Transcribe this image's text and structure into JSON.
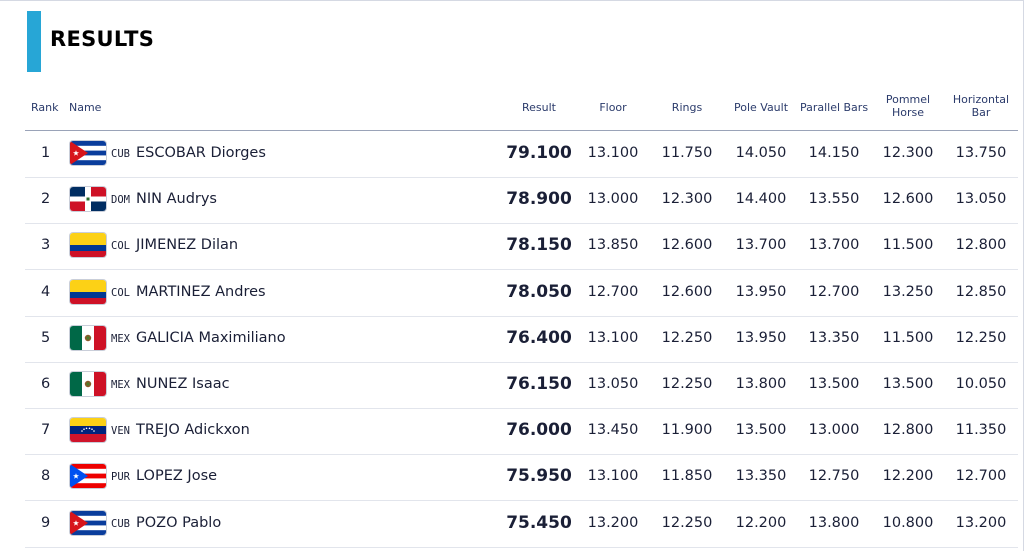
{
  "title": "RESULTS",
  "headers": {
    "rank": "Rank",
    "name": "Name",
    "result": "Result",
    "floor": "Floor",
    "rings": "Rings",
    "pole_vault": "Pole Vault",
    "parallel_bars": "Parallel Bars",
    "pommel_horse": "Pommel Horse",
    "horizontal_bar": "Horizontal Bar"
  },
  "rows": [
    {
      "rank": "1",
      "flag": "cuba-flag-icon",
      "code": "CUB",
      "name": "ESCOBAR Diorges",
      "result": "79.100",
      "floor": "13.100",
      "rings": "11.750",
      "pole_vault": "14.050",
      "parallel_bars": "14.150",
      "pommel_horse": "12.300",
      "horizontal_bar": "13.750"
    },
    {
      "rank": "2",
      "flag": "dominican-republic-flag-icon",
      "code": "DOM",
      "name": "NIN Audrys",
      "result": "78.900",
      "floor": "13.000",
      "rings": "12.300",
      "pole_vault": "14.400",
      "parallel_bars": "13.550",
      "pommel_horse": "12.600",
      "horizontal_bar": "13.050"
    },
    {
      "rank": "3",
      "flag": "colombia-flag-icon",
      "code": "COL",
      "name": "JIMENEZ Dilan",
      "result": "78.150",
      "floor": "13.850",
      "rings": "12.600",
      "pole_vault": "13.700",
      "parallel_bars": "13.700",
      "pommel_horse": "11.500",
      "horizontal_bar": "12.800"
    },
    {
      "rank": "4",
      "flag": "colombia-flag-icon",
      "code": "COL",
      "name": "MARTINEZ Andres",
      "result": "78.050",
      "floor": "12.700",
      "rings": "12.600",
      "pole_vault": "13.950",
      "parallel_bars": "12.700",
      "pommel_horse": "13.250",
      "horizontal_bar": "12.850"
    },
    {
      "rank": "5",
      "flag": "mexico-flag-icon",
      "code": "MEX",
      "name": "GALICIA Maximiliano",
      "result": "76.400",
      "floor": "13.100",
      "rings": "12.250",
      "pole_vault": "13.950",
      "parallel_bars": "13.350",
      "pommel_horse": "11.500",
      "horizontal_bar": "12.250"
    },
    {
      "rank": "6",
      "flag": "mexico-flag-icon",
      "code": "MEX",
      "name": "NUNEZ Isaac",
      "result": "76.150",
      "floor": "13.050",
      "rings": "12.250",
      "pole_vault": "13.800",
      "parallel_bars": "13.500",
      "pommel_horse": "13.500",
      "horizontal_bar": "10.050"
    },
    {
      "rank": "7",
      "flag": "venezuela-flag-icon",
      "code": "VEN",
      "name": "TREJO Adickxon",
      "result": "76.000",
      "floor": "13.450",
      "rings": "11.900",
      "pole_vault": "13.500",
      "parallel_bars": "13.000",
      "pommel_horse": "12.800",
      "horizontal_bar": "11.350"
    },
    {
      "rank": "8",
      "flag": "puerto-rico-flag-icon",
      "code": "PUR",
      "name": "LOPEZ Jose",
      "result": "75.950",
      "floor": "13.100",
      "rings": "11.850",
      "pole_vault": "13.350",
      "parallel_bars": "12.750",
      "pommel_horse": "12.200",
      "horizontal_bar": "12.700"
    },
    {
      "rank": "9",
      "flag": "cuba-flag-icon",
      "code": "CUB",
      "name": "POZO Pablo",
      "result": "75.450",
      "floor": "13.200",
      "rings": "12.250",
      "pole_vault": "12.200",
      "parallel_bars": "13.800",
      "pommel_horse": "10.800",
      "horizontal_bar": "13.200"
    }
  ],
  "colors": {
    "accent": "#27a6d6",
    "header_text": "#2b3b6b",
    "divider": "#9aa3b8"
  }
}
